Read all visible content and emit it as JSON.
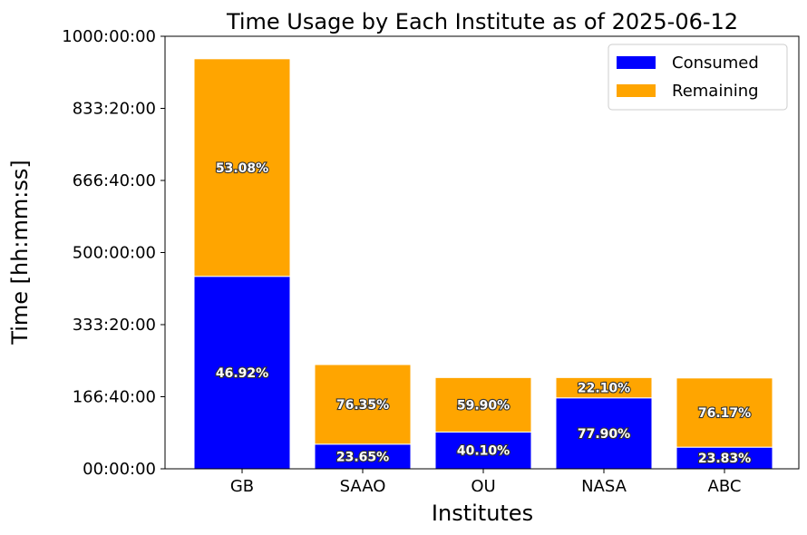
{
  "chart_data": {
    "type": "bar",
    "stacked": true,
    "title": "Time Usage by Each Institute as of 2025-06-12",
    "xlabel": "Institutes",
    "ylabel": "Time [hh:mm:ss]",
    "categories": [
      "GB",
      "SAAO",
      "OU",
      "NASA",
      "ABC"
    ],
    "ylim_hours": [
      0,
      1000
    ],
    "yticks": [
      {
        "hours": 0,
        "label": "00:00:00"
      },
      {
        "hours": 166.6667,
        "label": "166:40:00"
      },
      {
        "hours": 333.3333,
        "label": "333:20:00"
      },
      {
        "hours": 500,
        "label": "500:00:00"
      },
      {
        "hours": 666.6667,
        "label": "666:40:00"
      },
      {
        "hours": 833.3333,
        "label": "833:20:00"
      },
      {
        "hours": 1000,
        "label": "1000:00:00"
      }
    ],
    "series": [
      {
        "name": "Consumed",
        "color": "#0000ff",
        "values_hours": [
          445,
          57,
          85,
          164,
          50
        ],
        "labels": [
          "46.92%",
          "23.65%",
          "40.10%",
          "77.90%",
          "23.83%"
        ]
      },
      {
        "name": "Remaining",
        "color": "#ffa500",
        "values_hours": [
          503,
          184,
          126,
          47,
          160
        ],
        "labels": [
          "53.08%",
          "76.35%",
          "59.90%",
          "22.10%",
          "76.17%"
        ]
      }
    ],
    "legend_position": "top-right",
    "grid": false
  }
}
